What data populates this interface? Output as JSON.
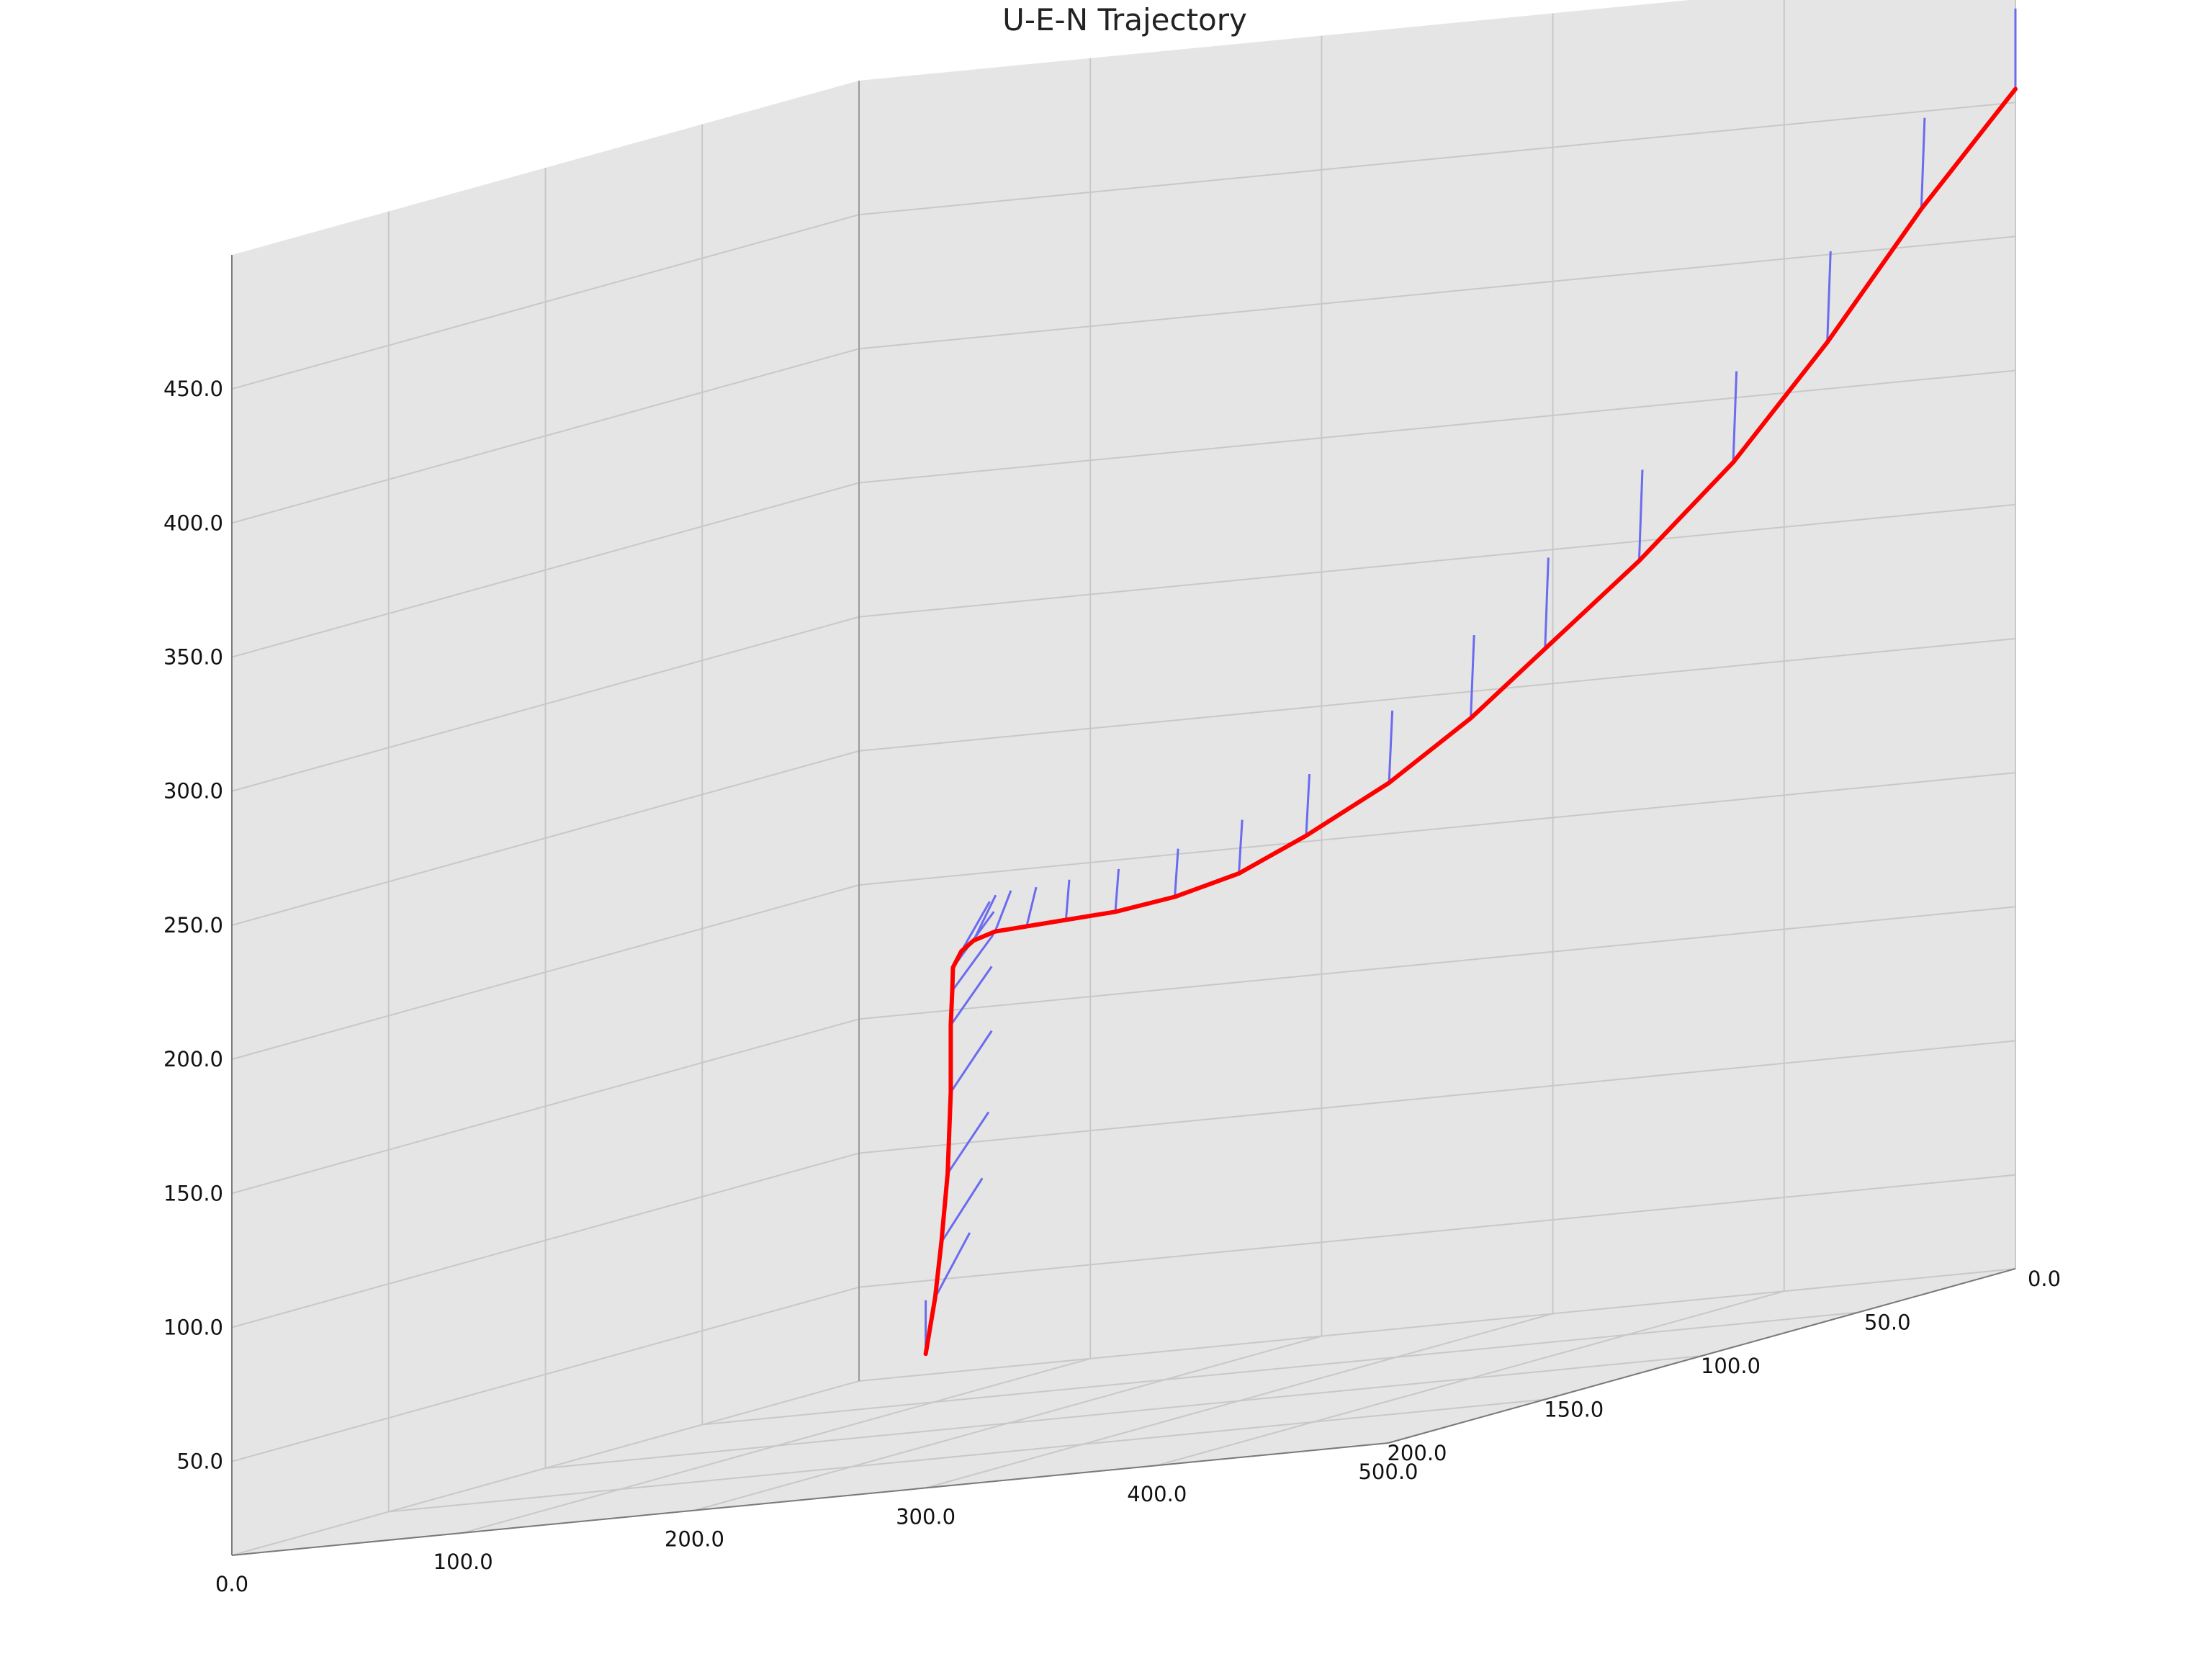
{
  "chart_data": {
    "type": "line",
    "title": "U-E-N Trajectory",
    "projection": "3d",
    "axes": {
      "x": {
        "ticks": [
          0,
          100,
          200,
          300,
          400,
          500
        ],
        "labels": [
          "0.0",
          "100.0",
          "200.0",
          "300.0",
          "400.0",
          "500.0"
        ],
        "range": [
          0,
          500
        ]
      },
      "y": {
        "ticks": [
          0,
          50,
          100,
          150,
          200
        ],
        "labels": [
          "0.0",
          "50.0",
          "100.0",
          "150.0",
          "200.0"
        ],
        "range": [
          0,
          200
        ]
      },
      "z": {
        "ticks": [
          50,
          100,
          150,
          200,
          250,
          300,
          350,
          400,
          450
        ],
        "labels": [
          "50.0",
          "100.0",
          "150.0",
          "200.0",
          "250.0",
          "300.0",
          "350.0",
          "400.0",
          "450.0"
        ],
        "range": [
          15,
          500
        ]
      }
    },
    "grid": true,
    "pane_color": "#e5e5e5",
    "series": [
      {
        "color": "#ff0000",
        "points": [
          [
            300,
            200,
            65
          ],
          [
            300,
            197,
            85
          ],
          [
            300,
            195,
            105
          ],
          [
            300,
            193,
            130
          ],
          [
            300,
            192,
            160
          ],
          [
            300,
            192,
            185
          ],
          [
            302,
            193,
            198
          ],
          [
            305,
            195,
            207
          ],
          [
            310,
            196,
            213
          ],
          [
            318,
            198,
            217
          ],
          [
            330,
            200,
            220
          ],
          [
            345,
            201,
            221
          ],
          [
            362,
            201,
            222
          ],
          [
            382,
            200,
            223
          ],
          [
            405,
            198,
            226
          ],
          [
            430,
            196,
            232
          ],
          [
            455,
            193,
            243
          ],
          [
            480,
            185,
            258
          ],
          [
            495,
            170,
            276
          ],
          [
            500,
            150,
            295
          ],
          [
            500,
            120,
            318
          ],
          [
            500,
            90,
            345
          ],
          [
            500,
            60,
            380
          ],
          [
            500,
            30,
            420
          ],
          [
            500,
            0,
            455
          ]
        ]
      }
    ],
    "direction_vectors": {
      "color": "#6b6bf0",
      "segments": [
        [
          0,
          0,
          0,
          0,
          7,
          0,
          20
        ],
        [
          1,
          0,
          7,
          0,
          6,
          1,
          20
        ],
        [
          2,
          0,
          8,
          0,
          7,
          1,
          19
        ],
        [
          3,
          0,
          8,
          0,
          7,
          1,
          18
        ],
        [
          4,
          0,
          8,
          0,
          7,
          1,
          18
        ],
        [
          5,
          0,
          8,
          0,
          7,
          1,
          17
        ],
        [
          6,
          0,
          8,
          0,
          7,
          1,
          16
        ],
        [
          7,
          0,
          8,
          0,
          6,
          1,
          16
        ],
        [
          8,
          0,
          6,
          0,
          5,
          1,
          15
        ],
        [
          9,
          0,
          5,
          0,
          4,
          1,
          14
        ],
        [
          10,
          0,
          4,
          0,
          3,
          1,
          13
        ],
        [
          11,
          0,
          3,
          0,
          2,
          1,
          13
        ],
        [
          12,
          0,
          2,
          0,
          1,
          1,
          14
        ],
        [
          13,
          0,
          2,
          0,
          0,
          1,
          15
        ],
        [
          14,
          0,
          2,
          0,
          0,
          1,
          17
        ],
        [
          15,
          0,
          2,
          0,
          0,
          1,
          19
        ],
        [
          16,
          0,
          2,
          0,
          0,
          1,
          22
        ],
        [
          17,
          0,
          2,
          0,
          0,
          1,
          26
        ],
        [
          18,
          0,
          2,
          0,
          0,
          1,
          30
        ],
        [
          19,
          0,
          2,
          0,
          0,
          1,
          33
        ],
        [
          20,
          0,
          2,
          0,
          0,
          1,
          33
        ],
        [
          21,
          0,
          2,
          0,
          0,
          1,
          33
        ],
        [
          22,
          0,
          2,
          0,
          0,
          1,
          33
        ],
        [
          23,
          0,
          2,
          0,
          0,
          1,
          33
        ],
        [
          24,
          0,
          0,
          0,
          0,
          0,
          30
        ]
      ]
    }
  }
}
